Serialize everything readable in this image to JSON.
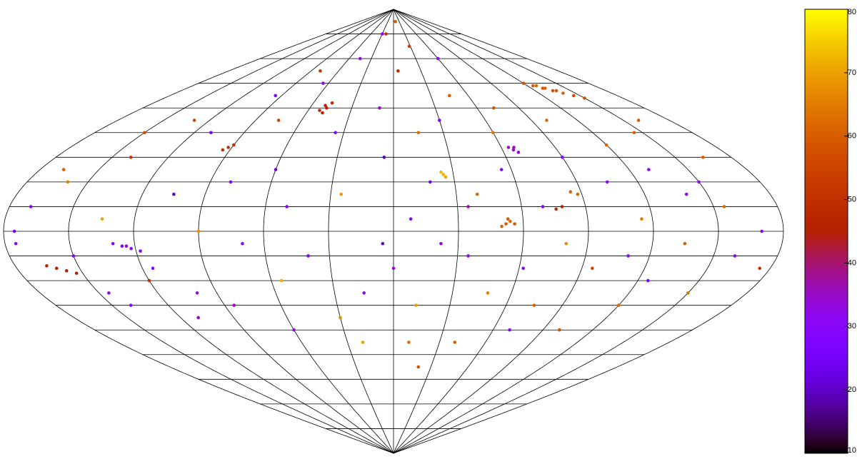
{
  "chart_data": {
    "type": "scatter",
    "projection": "sinusoidal",
    "xlim": [
      -180,
      180
    ],
    "ylim": [
      -90,
      90
    ],
    "meridians": [
      -180,
      -150,
      -120,
      -90,
      -60,
      -30,
      0,
      30,
      60,
      90,
      120,
      150,
      180
    ],
    "parallels": [
      -80,
      -70,
      -60,
      -50,
      -40,
      -30,
      -20,
      -10,
      0,
      10,
      20,
      30,
      40,
      50,
      60,
      70,
      80
    ],
    "clim": [
      10,
      80
    ],
    "cticks": [
      10,
      20,
      30,
      40,
      50,
      60,
      70,
      80
    ],
    "colormap": "gnuplot",
    "x": [
      120,
      125,
      130,
      135,
      140,
      145,
      128,
      138,
      150,
      132,
      -50,
      -48,
      -52,
      -46,
      -49,
      -92,
      -90,
      -94,
      66,
      68,
      64,
      67,
      25,
      26,
      24,
      52,
      54,
      50,
      56,
      53,
      -126,
      -122,
      -130,
      -118,
      -124,
      -161,
      -157,
      -165,
      -153,
      85,
      88,
      76,
      79,
      -170,
      -175,
      -160,
      -150,
      -140,
      -135,
      -120,
      -110,
      -105,
      -100,
      -95,
      -90,
      -85,
      -80,
      -75,
      -70,
      -65,
      -60,
      -55,
      -50,
      -45,
      -40,
      -35,
      -30,
      -25,
      -20,
      -15,
      -10,
      -5,
      0,
      5,
      8,
      12,
      15,
      18,
      22,
      28,
      30,
      35,
      40,
      45,
      48,
      55,
      60,
      62,
      70,
      72,
      75,
      80,
      90,
      95,
      100,
      105,
      110,
      115,
      120,
      125,
      130,
      135,
      140,
      145,
      150,
      155,
      160,
      165,
      170,
      175,
      -175,
      -168,
      -145,
      -130,
      -115,
      -20,
      10,
      40,
      70,
      -60,
      -110,
      100,
      120,
      -30,
      10,
      60,
      -80,
      160,
      -150,
      20,
      35,
      -5,
      -140,
      150
    ],
    "y": [
      60,
      59,
      58,
      57,
      56,
      55,
      59,
      57,
      54,
      58,
      51,
      50,
      49,
      52,
      48,
      34,
      35,
      33,
      33,
      32,
      34,
      34,
      23,
      22,
      24,
      3,
      4,
      2,
      3,
      5,
      -6,
      -7,
      -5,
      -8,
      -6,
      -15,
      -16,
      -14,
      -17,
      16,
      15,
      9,
      10,
      10,
      0,
      20,
      -10,
      30,
      5,
      -20,
      40,
      15,
      -25,
      55,
      0,
      -30,
      20,
      45,
      -5,
      60,
      25,
      -20,
      10,
      70,
      -10,
      40,
      -35,
      15,
      80,
      -25,
      50,
      30,
      -15,
      65,
      5,
      -30,
      40,
      20,
      -5,
      75,
      45,
      -10,
      15,
      55,
      -25,
      25,
      40,
      -15,
      10,
      50,
      -30,
      -5,
      30,
      -15,
      45,
      20,
      -10,
      5,
      35,
      -20,
      25,
      -5,
      15,
      40,
      -25,
      10,
      -10,
      30,
      0,
      -15,
      -5,
      25,
      -25,
      45,
      -15,
      -45,
      -45,
      -45,
      -40,
      -40,
      -35,
      -40,
      -30,
      80,
      85,
      70,
      65,
      45,
      40,
      -55,
      10,
      -5,
      -30,
      20
    ],
    "values": [
      58,
      60,
      59,
      58,
      60,
      57,
      62,
      59,
      58,
      61,
      47,
      46,
      48,
      47,
      46,
      50,
      49,
      50,
      35,
      34,
      36,
      35,
      72,
      71,
      73,
      60,
      62,
      61,
      59,
      60,
      30,
      31,
      29,
      30,
      32,
      45,
      44,
      46,
      45,
      60,
      62,
      47,
      46,
      30,
      25,
      65,
      28,
      52,
      70,
      50,
      25,
      20,
      33,
      27,
      68,
      35,
      28,
      55,
      30,
      30,
      22,
      72,
      30,
      33,
      26,
      30,
      68,
      70,
      50,
      30,
      35,
      20,
      32,
      48,
      30,
      70,
      63,
      25,
      33,
      55,
      28,
      30,
      62,
      60,
      65,
      30,
      64,
      30,
      28,
      58,
      60,
      67,
      30,
      55,
      62,
      30,
      30,
      65,
      62,
      28,
      30,
      60,
      32,
      60,
      63,
      62,
      30,
      60,
      32,
      50,
      30,
      60,
      32,
      55,
      30,
      70,
      62,
      60,
      30,
      34,
      35,
      58,
      62,
      30,
      60,
      30,
      50,
      60,
      58,
      58,
      38,
      20,
      28,
      30
    ]
  }
}
